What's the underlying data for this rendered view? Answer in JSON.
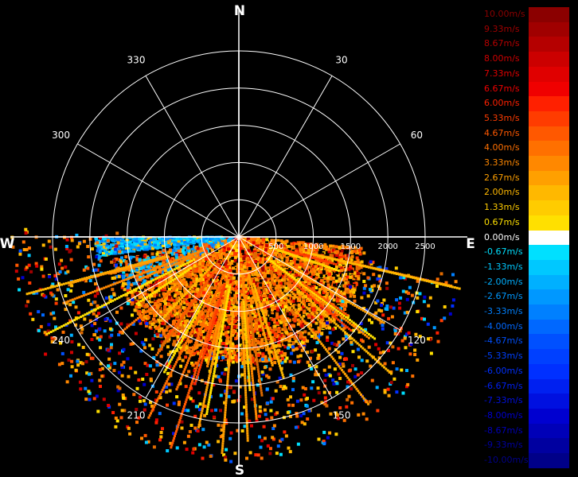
{
  "cardinals": {
    "north": "N",
    "east": "E",
    "south": "S",
    "west": "W"
  },
  "bearings": [
    {
      "deg": 30,
      "label": "30"
    },
    {
      "deg": 60,
      "label": "60"
    },
    {
      "deg": 120,
      "label": "120"
    },
    {
      "deg": 150,
      "label": "150"
    },
    {
      "deg": 210,
      "label": "210"
    },
    {
      "deg": 240,
      "label": "240"
    },
    {
      "deg": 300,
      "label": "300"
    },
    {
      "deg": 330,
      "label": "330"
    }
  ],
  "range_rings": [
    {
      "value": 500,
      "label": "500"
    },
    {
      "value": 1000,
      "label": "1000"
    },
    {
      "value": 1500,
      "label": "1500"
    },
    {
      "value": 2000,
      "label": "2000"
    },
    {
      "value": 2500,
      "label": "2500"
    }
  ],
  "range_max": 2500,
  "colorscale": [
    {
      "label": "10.00m/s",
      "color": "#8b0000"
    },
    {
      "label": "9.33m/s",
      "color": "#a00000"
    },
    {
      "label": "8.67m/s",
      "color": "#b50000"
    },
    {
      "label": "8.00m/s",
      "color": "#cc0000"
    },
    {
      "label": "7.33m/s",
      "color": "#e00000"
    },
    {
      "label": "6.67m/s",
      "color": "#f00000"
    },
    {
      "label": "6.00m/s",
      "color": "#ff2000"
    },
    {
      "label": "5.33m/s",
      "color": "#ff3c00"
    },
    {
      "label": "4.67m/s",
      "color": "#ff5800"
    },
    {
      "label": "4.00m/s",
      "color": "#ff7000"
    },
    {
      "label": "3.33m/s",
      "color": "#ff8800"
    },
    {
      "label": "2.67m/s",
      "color": "#ffa000"
    },
    {
      "label": "2.00m/s",
      "color": "#ffb800"
    },
    {
      "label": "1.33m/s",
      "color": "#ffcc00"
    },
    {
      "label": "0.67m/s",
      "color": "#ffe000"
    },
    {
      "label": "0.00m/s",
      "color": "#ffffff"
    },
    {
      "label": "-0.67m/s",
      "color": "#00e0ff"
    },
    {
      "label": "-1.33m/s",
      "color": "#00c8ff"
    },
    {
      "label": "-2.00m/s",
      "color": "#00b0ff"
    },
    {
      "label": "-2.67m/s",
      "color": "#0098ff"
    },
    {
      "label": "-3.33m/s",
      "color": "#0080ff"
    },
    {
      "label": "-4.00m/s",
      "color": "#0068ff"
    },
    {
      "label": "-4.67m/s",
      "color": "#0050ff"
    },
    {
      "label": "-5.33m/s",
      "color": "#0040ff"
    },
    {
      "label": "-6.00m/s",
      "color": "#0030ff"
    },
    {
      "label": "-6.67m/s",
      "color": "#0020f0"
    },
    {
      "label": "-7.33m/s",
      "color": "#0010e0"
    },
    {
      "label": "-8.00m/s",
      "color": "#0000d0"
    },
    {
      "label": "-8.67m/s",
      "color": "#0000b8"
    },
    {
      "label": "-9.33m/s",
      "color": "#0000a0"
    },
    {
      "label": "-10.00m/s",
      "color": "#000088"
    }
  ]
}
